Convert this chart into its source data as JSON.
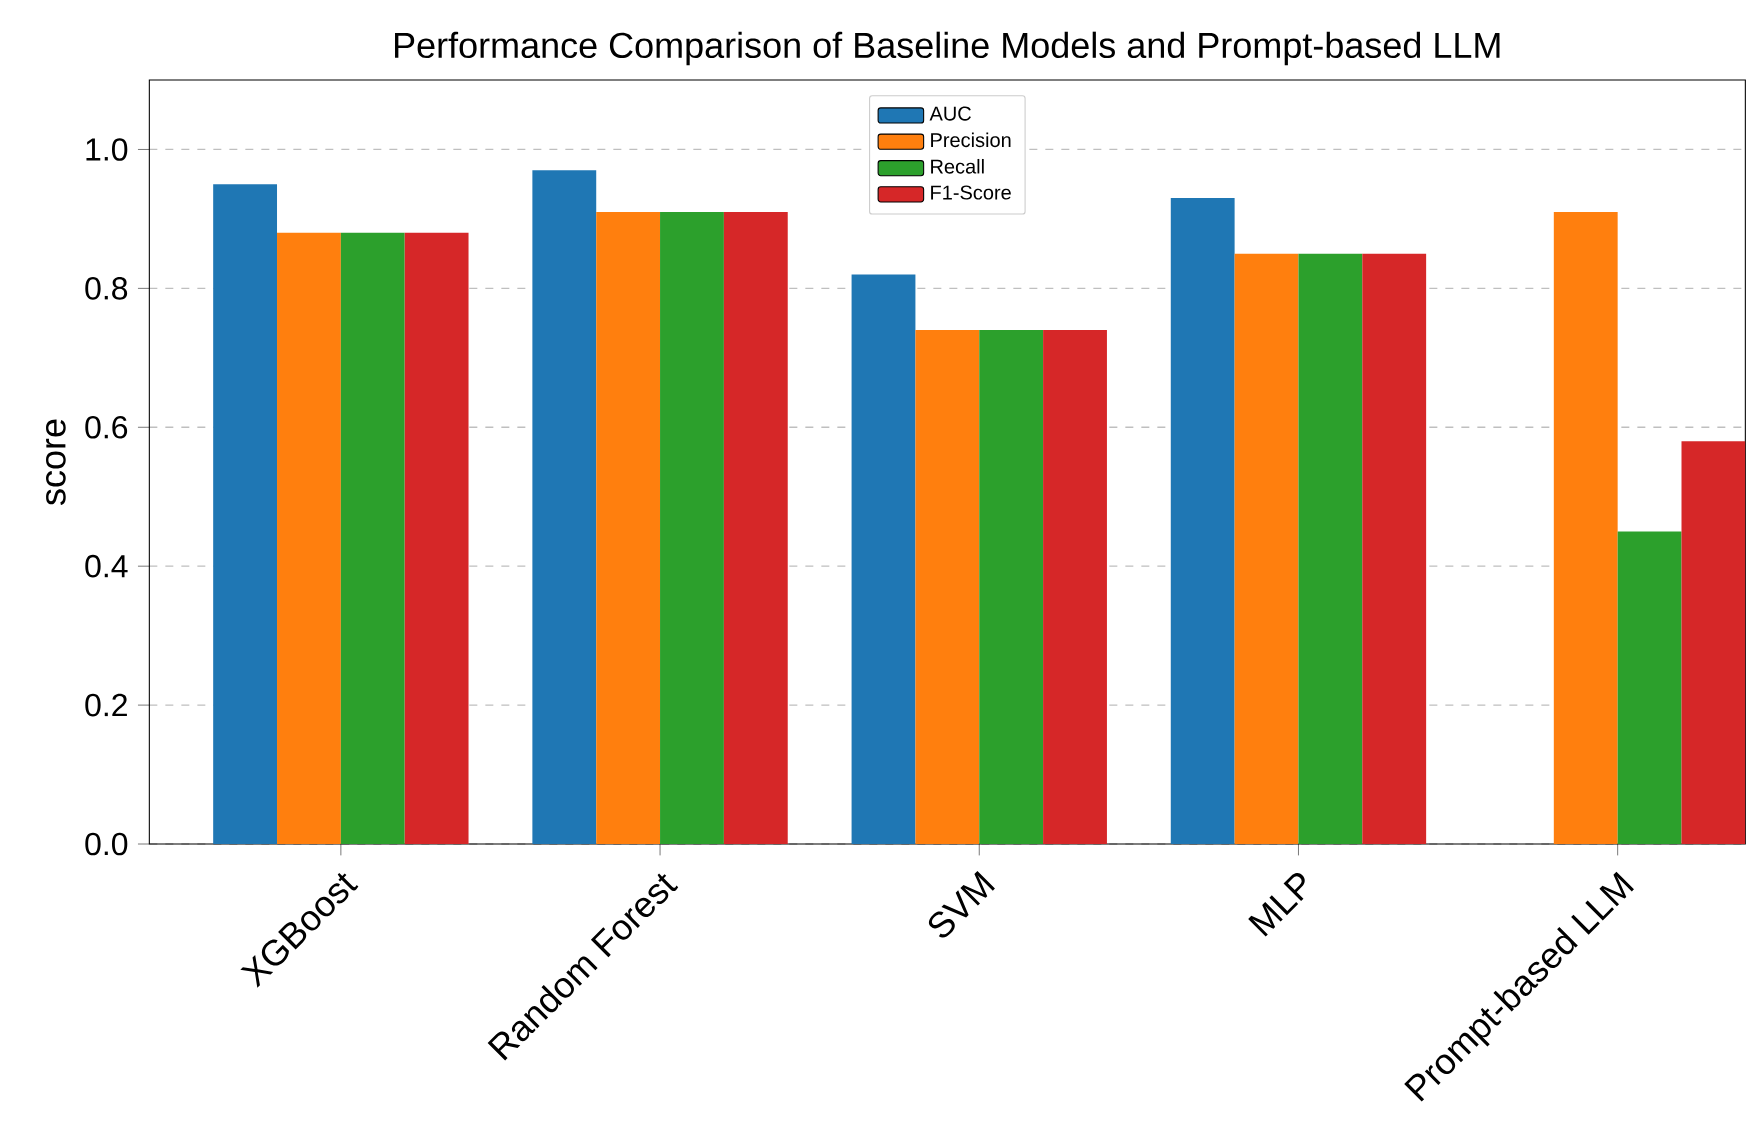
{
  "chart_data": {
    "type": "bar",
    "title": "Performance Comparison of Baseline Models and Prompt-based LLM",
    "ylabel": "score",
    "categories": [
      "XGBoost",
      "Random Forest",
      "SVM",
      "MLP",
      "Prompt-based LLM"
    ],
    "series": [
      {
        "name": "AUC",
        "color": "#1f77b4",
        "values": [
          0.95,
          0.97,
          0.82,
          0.93,
          null
        ]
      },
      {
        "name": "Precision",
        "color": "#ff7f0e",
        "values": [
          0.88,
          0.91,
          0.74,
          0.85,
          0.91
        ]
      },
      {
        "name": "Recall",
        "color": "#2ca02c",
        "values": [
          0.88,
          0.91,
          0.74,
          0.85,
          0.45
        ]
      },
      {
        "name": "F1-Score",
        "color": "#d62728",
        "values": [
          0.88,
          0.91,
          0.74,
          0.85,
          0.58
        ]
      }
    ],
    "ylim": [
      0,
      1.1
    ],
    "yticks": [
      {
        "value": 0,
        "label": "0.0"
      },
      {
        "value": 0.2,
        "label": "0.2"
      },
      {
        "value": 0.4,
        "label": "0.4"
      },
      {
        "value": 0.6,
        "label": "0.6"
      },
      {
        "value": 0.8,
        "label": "0.8"
      },
      {
        "value": 1.0,
        "label": "1.0"
      }
    ],
    "grid": "y",
    "legend": "top"
  }
}
